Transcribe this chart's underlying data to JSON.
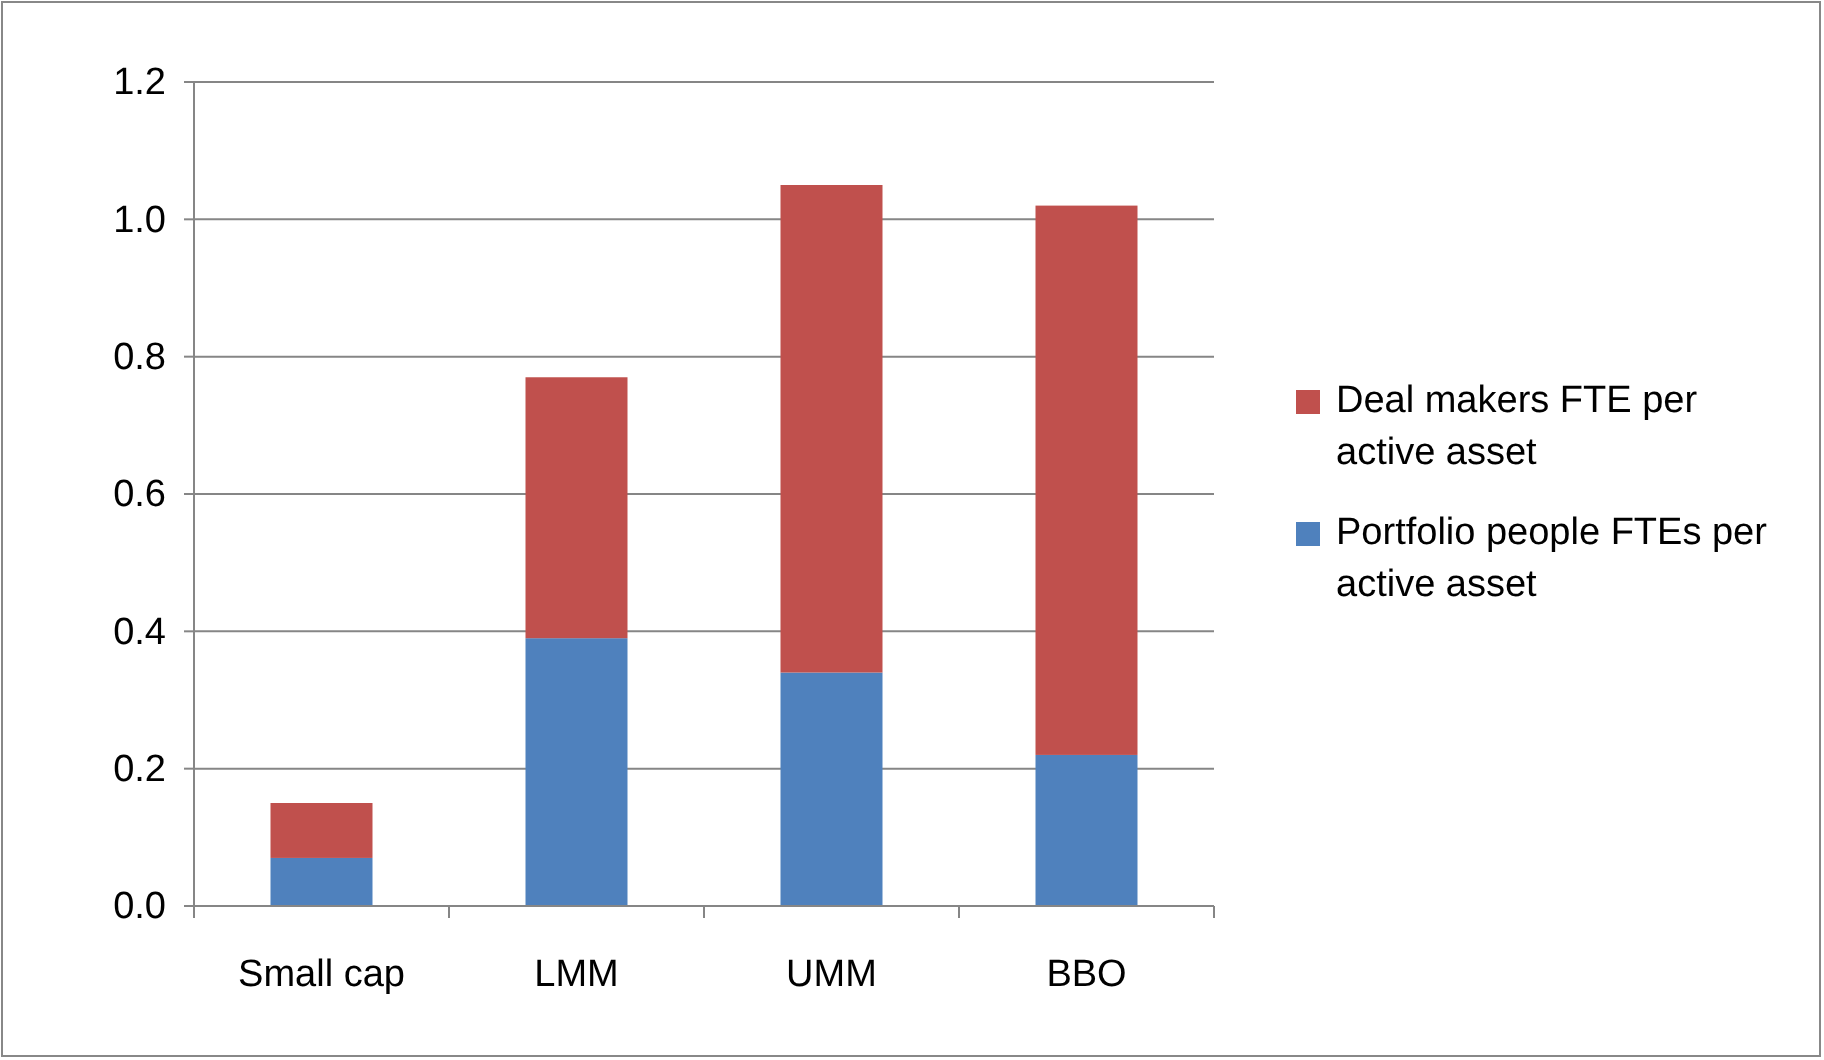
{
  "chart_data": {
    "type": "bar",
    "stacked": true,
    "categories": [
      "Small cap",
      "LMM",
      "UMM",
      "BBO"
    ],
    "series": [
      {
        "name": "Portfolio people FTEs per active asset",
        "color": "#4f81bd",
        "values": [
          0.07,
          0.39,
          0.34,
          0.22
        ]
      },
      {
        "name": "Deal makers FTE per active asset",
        "color": "#c0504d",
        "values": [
          0.08,
          0.38,
          0.71,
          0.8
        ]
      }
    ],
    "ylim": [
      0,
      1.2
    ],
    "yticks": [
      {
        "value": 0,
        "label": "0.0"
      },
      {
        "value": 0.2,
        "label": "0.2"
      },
      {
        "value": 0.4,
        "label": "0.4"
      },
      {
        "value": 0.6,
        "label": "0.6"
      },
      {
        "value": 0.8,
        "label": "0.8"
      },
      {
        "value": 1,
        "label": "1.0"
      },
      {
        "value": 1.2,
        "label": "1.2"
      }
    ],
    "grid": "y",
    "legend": "right"
  }
}
